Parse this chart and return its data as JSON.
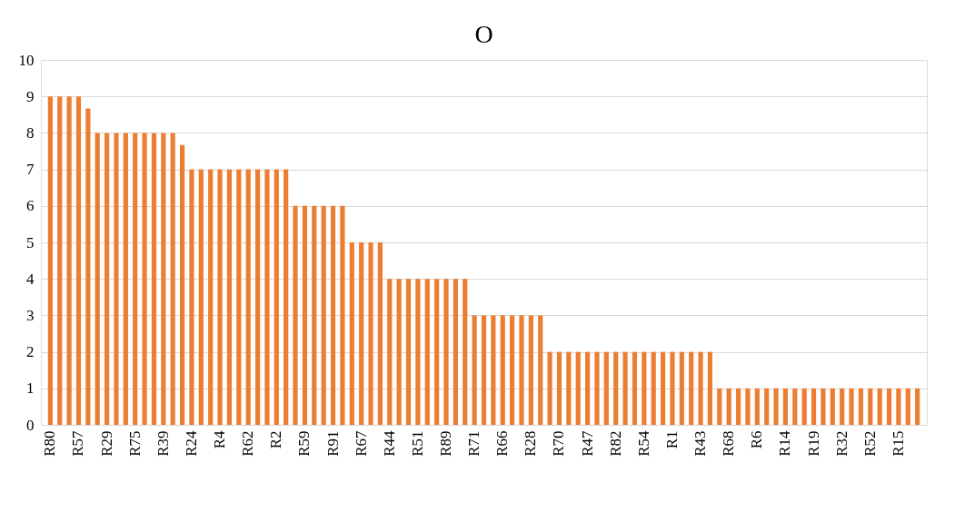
{
  "chart_data": {
    "type": "bar",
    "title": "O",
    "categories": [
      "R80",
      null,
      null,
      "R57",
      null,
      null,
      "R29",
      null,
      null,
      "R75",
      null,
      null,
      "R39",
      null,
      null,
      "R24",
      null,
      null,
      "R4",
      null,
      null,
      "R62",
      null,
      null,
      "R2",
      null,
      null,
      "R59",
      null,
      null,
      "R91",
      null,
      null,
      "R67",
      null,
      null,
      "R44",
      null,
      null,
      "R51",
      null,
      null,
      "R89",
      null,
      null,
      "R71",
      null,
      null,
      "R66",
      null,
      null,
      "R28",
      null,
      null,
      "R70",
      null,
      null,
      "R47",
      null,
      null,
      "R82",
      null,
      null,
      "R54",
      null,
      null,
      "R1",
      null,
      null,
      "R43",
      null,
      null,
      "R68",
      null,
      null,
      "R6",
      null,
      null,
      "R14",
      null,
      null,
      "R19",
      null,
      null,
      "R32",
      null,
      null,
      "R52",
      null,
      null,
      "R15",
      null,
      null
    ],
    "values": [
      9,
      9,
      9,
      9,
      8.67,
      8,
      8,
      8,
      8,
      8,
      8,
      8,
      8,
      8,
      7.67,
      7,
      7,
      7,
      7,
      7,
      7,
      7,
      7,
      7,
      7,
      7,
      6,
      6,
      6,
      6,
      6,
      6,
      5,
      5,
      5,
      5,
      4,
      4,
      4,
      4,
      4,
      4,
      4,
      4,
      4,
      3,
      3,
      3,
      3,
      3,
      3,
      3,
      3,
      2,
      2,
      2,
      2,
      2,
      2,
      2,
      2,
      2,
      2,
      2,
      2,
      2,
      2,
      2,
      2,
      2,
      2,
      1,
      1,
      1,
      1,
      1,
      1,
      1,
      1,
      1,
      1,
      1,
      1,
      1,
      1,
      1,
      1,
      1,
      1,
      1,
      1,
      1,
      1
    ],
    "color": "#ed7d31",
    "ylim": [
      0,
      10
    ],
    "yticks": [
      0,
      1,
      2,
      3,
      4,
      5,
      6,
      7,
      8,
      9,
      10
    ],
    "grid": "y"
  }
}
